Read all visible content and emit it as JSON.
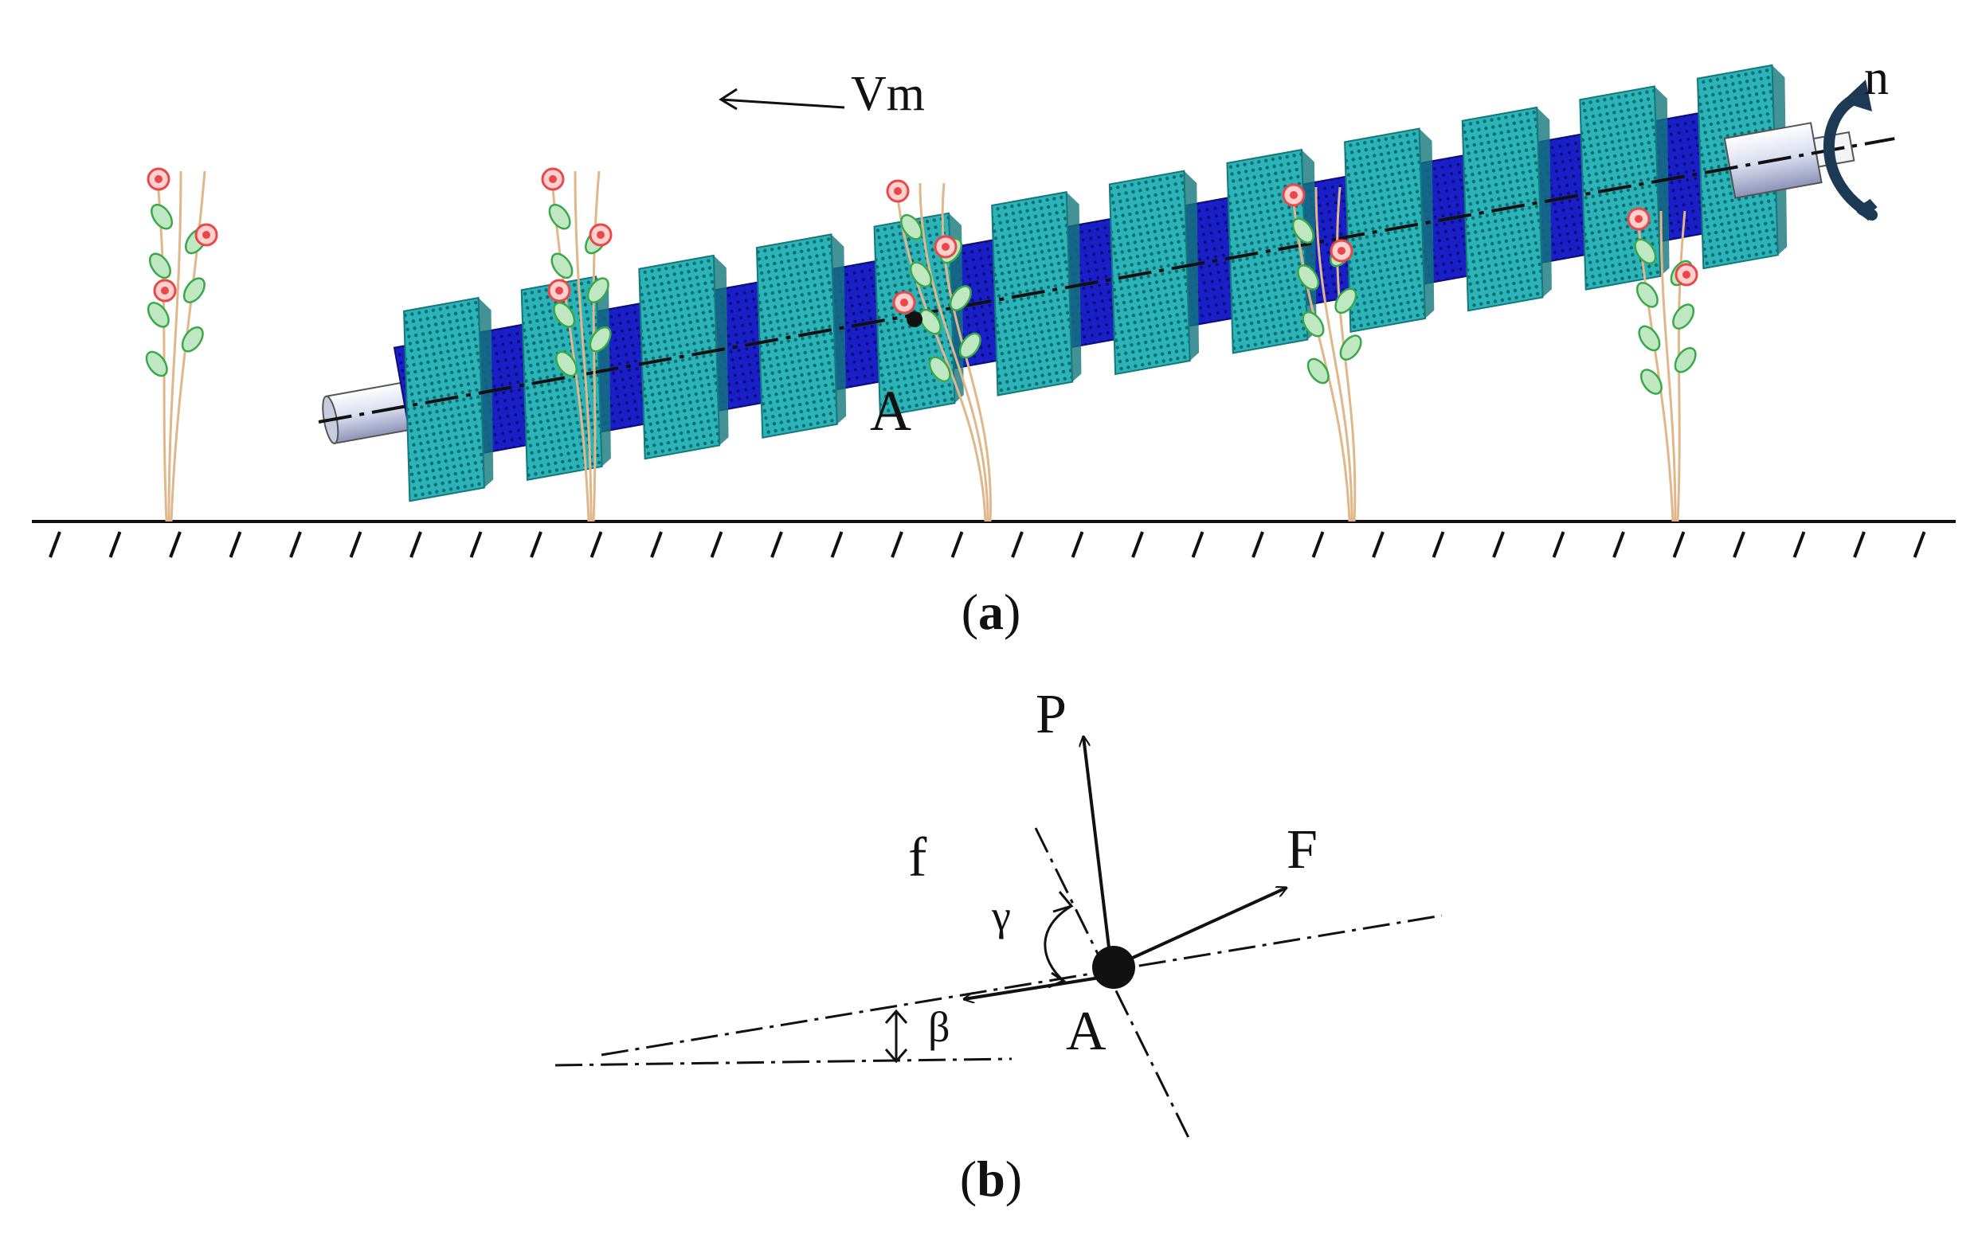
{
  "panel_a": {
    "velocity_label": "Vm",
    "rotation_label": "n",
    "point_label": "A",
    "caption_letter": "a"
  },
  "panel_b": {
    "force_p_label": "P",
    "force_f_label": "F",
    "friction_label": "f",
    "angle_gamma_label": "γ",
    "angle_beta_label": "β",
    "point_label": "A",
    "caption_letter": "b"
  },
  "colors": {
    "core": "#1a1fc8",
    "core_dark": "#0c0e7a",
    "helix": "#2ab4b8",
    "helix_dark": "#14787c",
    "stem": "#e0b68a",
    "leaf": "#3aa84a",
    "flower": "#e84848",
    "ink": "#111111"
  }
}
